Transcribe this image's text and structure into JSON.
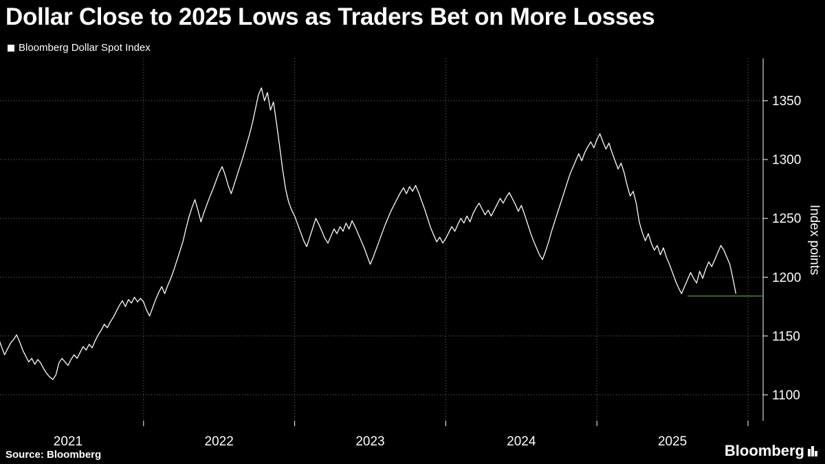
{
  "footer": {
    "source": "Source: Bloomberg",
    "logo_text": "Bloomberg"
  },
  "chart_data": {
    "type": "line",
    "title": "Dollar Close to 2025 Lows as Traders Bet on More Losses",
    "ylabel": "Index points",
    "legend_position": "top-left",
    "background": "#000000",
    "grid_color": "#757575",
    "axis_color": "#ffffff",
    "x_domain": [
      2021.05,
      2026.1
    ],
    "y_domain": [
      1078,
      1386
    ],
    "y_ticks": [
      1100,
      1150,
      1200,
      1250,
      1300,
      1350
    ],
    "x_gridlines": [
      2022,
      2023,
      2024,
      2025,
      2026
    ],
    "x_ticks": [
      {
        "pos": 2021.5,
        "label": "2021"
      },
      {
        "pos": 2022.5,
        "label": "2022"
      },
      {
        "pos": 2023.5,
        "label": "2023"
      },
      {
        "pos": 2024.5,
        "label": "2024"
      },
      {
        "pos": 2025.5,
        "label": "2025"
      }
    ],
    "reference_line": {
      "value": 1184,
      "from_x": 2025.6,
      "color": "#4a8c2b"
    },
    "series": [
      {
        "name": "Bloomberg Dollar Spot Index",
        "color": "#ffffff",
        "points": [
          [
            2021.0,
            1136
          ],
          [
            2021.02,
            1143
          ],
          [
            2021.04,
            1148
          ],
          [
            2021.06,
            1141
          ],
          [
            2021.08,
            1134
          ],
          [
            2021.1,
            1139
          ],
          [
            2021.12,
            1144
          ],
          [
            2021.14,
            1147
          ],
          [
            2021.16,
            1151
          ],
          [
            2021.18,
            1145
          ],
          [
            2021.2,
            1138
          ],
          [
            2021.22,
            1133
          ],
          [
            2021.24,
            1128
          ],
          [
            2021.26,
            1131
          ],
          [
            2021.28,
            1126
          ],
          [
            2021.3,
            1130
          ],
          [
            2021.32,
            1127
          ],
          [
            2021.34,
            1122
          ],
          [
            2021.36,
            1118
          ],
          [
            2021.38,
            1115
          ],
          [
            2021.4,
            1113
          ],
          [
            2021.42,
            1117
          ],
          [
            2021.44,
            1127
          ],
          [
            2021.46,
            1131
          ],
          [
            2021.48,
            1128
          ],
          [
            2021.5,
            1125
          ],
          [
            2021.52,
            1130
          ],
          [
            2021.54,
            1134
          ],
          [
            2021.56,
            1131
          ],
          [
            2021.58,
            1136
          ],
          [
            2021.6,
            1141
          ],
          [
            2021.62,
            1138
          ],
          [
            2021.64,
            1143
          ],
          [
            2021.66,
            1140
          ],
          [
            2021.68,
            1146
          ],
          [
            2021.7,
            1151
          ],
          [
            2021.72,
            1155
          ],
          [
            2021.74,
            1160
          ],
          [
            2021.76,
            1157
          ],
          [
            2021.78,
            1162
          ],
          [
            2021.8,
            1166
          ],
          [
            2021.82,
            1171
          ],
          [
            2021.84,
            1176
          ],
          [
            2021.86,
            1180
          ],
          [
            2021.88,
            1175
          ],
          [
            2021.9,
            1181
          ],
          [
            2021.92,
            1178
          ],
          [
            2021.94,
            1183
          ],
          [
            2021.96,
            1179
          ],
          [
            2021.98,
            1182
          ],
          [
            2022.0,
            1179
          ],
          [
            2022.02,
            1172
          ],
          [
            2022.04,
            1167
          ],
          [
            2022.06,
            1174
          ],
          [
            2022.08,
            1181
          ],
          [
            2022.1,
            1187
          ],
          [
            2022.12,
            1192
          ],
          [
            2022.14,
            1186
          ],
          [
            2022.16,
            1193
          ],
          [
            2022.18,
            1199
          ],
          [
            2022.2,
            1206
          ],
          [
            2022.22,
            1214
          ],
          [
            2022.24,
            1222
          ],
          [
            2022.26,
            1230
          ],
          [
            2022.28,
            1241
          ],
          [
            2022.3,
            1251
          ],
          [
            2022.32,
            1259
          ],
          [
            2022.34,
            1266
          ],
          [
            2022.36,
            1257
          ],
          [
            2022.38,
            1247
          ],
          [
            2022.4,
            1255
          ],
          [
            2022.42,
            1262
          ],
          [
            2022.44,
            1269
          ],
          [
            2022.46,
            1275
          ],
          [
            2022.48,
            1282
          ],
          [
            2022.5,
            1289
          ],
          [
            2022.52,
            1294
          ],
          [
            2022.54,
            1287
          ],
          [
            2022.56,
            1278
          ],
          [
            2022.58,
            1271
          ],
          [
            2022.6,
            1279
          ],
          [
            2022.62,
            1287
          ],
          [
            2022.64,
            1295
          ],
          [
            2022.66,
            1303
          ],
          [
            2022.68,
            1312
          ],
          [
            2022.7,
            1321
          ],
          [
            2022.72,
            1331
          ],
          [
            2022.74,
            1343
          ],
          [
            2022.76,
            1355
          ],
          [
            2022.78,
            1361
          ],
          [
            2022.8,
            1350
          ],
          [
            2022.82,
            1357
          ],
          [
            2022.84,
            1342
          ],
          [
            2022.86,
            1349
          ],
          [
            2022.88,
            1331
          ],
          [
            2022.9,
            1312
          ],
          [
            2022.92,
            1292
          ],
          [
            2022.94,
            1275
          ],
          [
            2022.96,
            1264
          ],
          [
            2022.98,
            1257
          ],
          [
            2023.0,
            1252
          ],
          [
            2023.02,
            1245
          ],
          [
            2023.04,
            1238
          ],
          [
            2023.06,
            1231
          ],
          [
            2023.08,
            1226
          ],
          [
            2023.1,
            1234
          ],
          [
            2023.12,
            1242
          ],
          [
            2023.14,
            1250
          ],
          [
            2023.16,
            1245
          ],
          [
            2023.18,
            1239
          ],
          [
            2023.2,
            1233
          ],
          [
            2023.22,
            1229
          ],
          [
            2023.24,
            1235
          ],
          [
            2023.26,
            1241
          ],
          [
            2023.28,
            1237
          ],
          [
            2023.3,
            1243
          ],
          [
            2023.32,
            1239
          ],
          [
            2023.34,
            1246
          ],
          [
            2023.36,
            1241
          ],
          [
            2023.38,
            1248
          ],
          [
            2023.4,
            1243
          ],
          [
            2023.42,
            1237
          ],
          [
            2023.44,
            1231
          ],
          [
            2023.46,
            1225
          ],
          [
            2023.48,
            1218
          ],
          [
            2023.5,
            1211
          ],
          [
            2023.52,
            1217
          ],
          [
            2023.54,
            1224
          ],
          [
            2023.56,
            1231
          ],
          [
            2023.58,
            1238
          ],
          [
            2023.6,
            1245
          ],
          [
            2023.62,
            1251
          ],
          [
            2023.64,
            1257
          ],
          [
            2023.66,
            1262
          ],
          [
            2023.68,
            1267
          ],
          [
            2023.7,
            1272
          ],
          [
            2023.72,
            1276
          ],
          [
            2023.74,
            1271
          ],
          [
            2023.76,
            1277
          ],
          [
            2023.78,
            1273
          ],
          [
            2023.8,
            1278
          ],
          [
            2023.82,
            1272
          ],
          [
            2023.84,
            1265
          ],
          [
            2023.86,
            1258
          ],
          [
            2023.88,
            1250
          ],
          [
            2023.9,
            1242
          ],
          [
            2023.92,
            1236
          ],
          [
            2023.94,
            1230
          ],
          [
            2023.96,
            1234
          ],
          [
            2023.98,
            1229
          ],
          [
            2024.0,
            1233
          ],
          [
            2024.02,
            1238
          ],
          [
            2024.04,
            1243
          ],
          [
            2024.06,
            1239
          ],
          [
            2024.08,
            1245
          ],
          [
            2024.1,
            1250
          ],
          [
            2024.12,
            1246
          ],
          [
            2024.14,
            1252
          ],
          [
            2024.16,
            1247
          ],
          [
            2024.18,
            1254
          ],
          [
            2024.2,
            1259
          ],
          [
            2024.22,
            1263
          ],
          [
            2024.24,
            1258
          ],
          [
            2024.26,
            1253
          ],
          [
            2024.28,
            1257
          ],
          [
            2024.3,
            1252
          ],
          [
            2024.32,
            1257
          ],
          [
            2024.34,
            1262
          ],
          [
            2024.36,
            1267
          ],
          [
            2024.38,
            1263
          ],
          [
            2024.4,
            1268
          ],
          [
            2024.42,
            1272
          ],
          [
            2024.44,
            1267
          ],
          [
            2024.46,
            1262
          ],
          [
            2024.48,
            1256
          ],
          [
            2024.5,
            1261
          ],
          [
            2024.52,
            1254
          ],
          [
            2024.54,
            1246
          ],
          [
            2024.56,
            1238
          ],
          [
            2024.58,
            1231
          ],
          [
            2024.6,
            1225
          ],
          [
            2024.62,
            1219
          ],
          [
            2024.64,
            1215
          ],
          [
            2024.66,
            1222
          ],
          [
            2024.68,
            1230
          ],
          [
            2024.7,
            1239
          ],
          [
            2024.72,
            1247
          ],
          [
            2024.74,
            1255
          ],
          [
            2024.76,
            1263
          ],
          [
            2024.78,
            1271
          ],
          [
            2024.8,
            1279
          ],
          [
            2024.82,
            1287
          ],
          [
            2024.84,
            1293
          ],
          [
            2024.86,
            1299
          ],
          [
            2024.88,
            1305
          ],
          [
            2024.9,
            1299
          ],
          [
            2024.92,
            1306
          ],
          [
            2024.94,
            1311
          ],
          [
            2024.96,
            1315
          ],
          [
            2024.98,
            1310
          ],
          [
            2025.0,
            1317
          ],
          [
            2025.02,
            1322
          ],
          [
            2025.04,
            1315
          ],
          [
            2025.06,
            1309
          ],
          [
            2025.08,
            1314
          ],
          [
            2025.1,
            1306
          ],
          [
            2025.12,
            1299
          ],
          [
            2025.14,
            1292
          ],
          [
            2025.16,
            1297
          ],
          [
            2025.18,
            1289
          ],
          [
            2025.2,
            1278
          ],
          [
            2025.22,
            1269
          ],
          [
            2025.24,
            1273
          ],
          [
            2025.26,
            1263
          ],
          [
            2025.28,
            1247
          ],
          [
            2025.3,
            1238
          ],
          [
            2025.32,
            1231
          ],
          [
            2025.34,
            1237
          ],
          [
            2025.36,
            1229
          ],
          [
            2025.38,
            1223
          ],
          [
            2025.4,
            1227
          ],
          [
            2025.42,
            1219
          ],
          [
            2025.44,
            1225
          ],
          [
            2025.46,
            1217
          ],
          [
            2025.48,
            1211
          ],
          [
            2025.5,
            1204
          ],
          [
            2025.52,
            1197
          ],
          [
            2025.54,
            1191
          ],
          [
            2025.56,
            1186
          ],
          [
            2025.58,
            1192
          ],
          [
            2025.6,
            1198
          ],
          [
            2025.62,
            1204
          ],
          [
            2025.64,
            1199
          ],
          [
            2025.66,
            1195
          ],
          [
            2025.68,
            1205
          ],
          [
            2025.7,
            1199
          ],
          [
            2025.72,
            1207
          ],
          [
            2025.74,
            1213
          ],
          [
            2025.76,
            1209
          ],
          [
            2025.78,
            1215
          ],
          [
            2025.8,
            1221
          ],
          [
            2025.82,
            1227
          ],
          [
            2025.84,
            1223
          ],
          [
            2025.86,
            1217
          ],
          [
            2025.88,
            1211
          ],
          [
            2025.9,
            1199
          ],
          [
            2025.92,
            1186
          ]
        ]
      }
    ]
  }
}
